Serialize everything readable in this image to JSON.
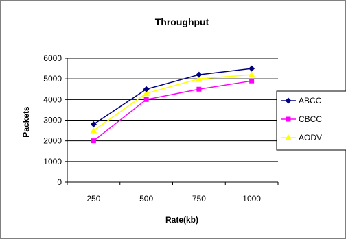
{
  "chart_data": {
    "type": "line",
    "title": "Throughput",
    "xlabel": "Rate(kb)",
    "ylabel": "Packets",
    "categories": [
      "250",
      "500",
      "750",
      "1000"
    ],
    "ylim": [
      0,
      6000
    ],
    "yticks": [
      "0",
      "1000",
      "2000",
      "3000",
      "4000",
      "5000",
      "6000"
    ],
    "grid": "horizontal",
    "legend": "right",
    "series": [
      {
        "name": "ABCC",
        "values": [
          2800,
          4500,
          5200,
          5500
        ],
        "color": "#000080",
        "marker": "diamond"
      },
      {
        "name": "CBCC",
        "values": [
          2000,
          4000,
          4500,
          4900
        ],
        "color": "#ff00ff",
        "marker": "square"
      },
      {
        "name": "AODV",
        "values": [
          2500,
          4300,
          5000,
          5200
        ],
        "color": "#ffff00",
        "marker": "triangle"
      }
    ]
  }
}
